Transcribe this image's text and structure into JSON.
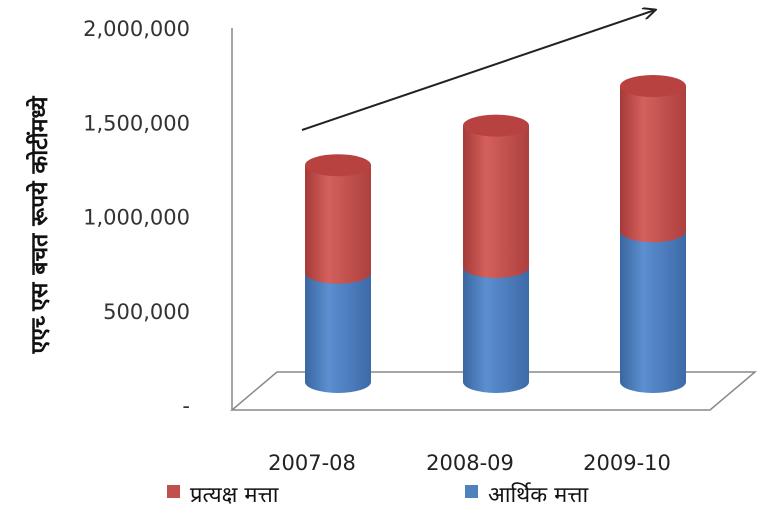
{
  "chart_data": {
    "type": "bar",
    "stacked": true,
    "style": "3d-cylinder",
    "title": "",
    "xlabel": "",
    "ylabel": "एएच्‍ एस बचत रूपये कोटींमध्ये",
    "categories": [
      "2007-08",
      "2008-09",
      "2009-10"
    ],
    "y_ticks": [
      "-",
      "500,000",
      "1,000,000",
      "1,500,000",
      "2,000,000"
    ],
    "ylim": [
      0,
      2000000
    ],
    "series": [
      {
        "name": "आर्थिक मत्ता",
        "color": "#4f81bd",
        "values": [
          580000,
          610000,
          800000
        ]
      },
      {
        "name": "प्रत्यक्ष मत्ता",
        "color": "#c0504d",
        "values": [
          570000,
          750000,
          770000
        ]
      }
    ],
    "legend_position": "bottom",
    "annotation": "trend-arrow"
  }
}
